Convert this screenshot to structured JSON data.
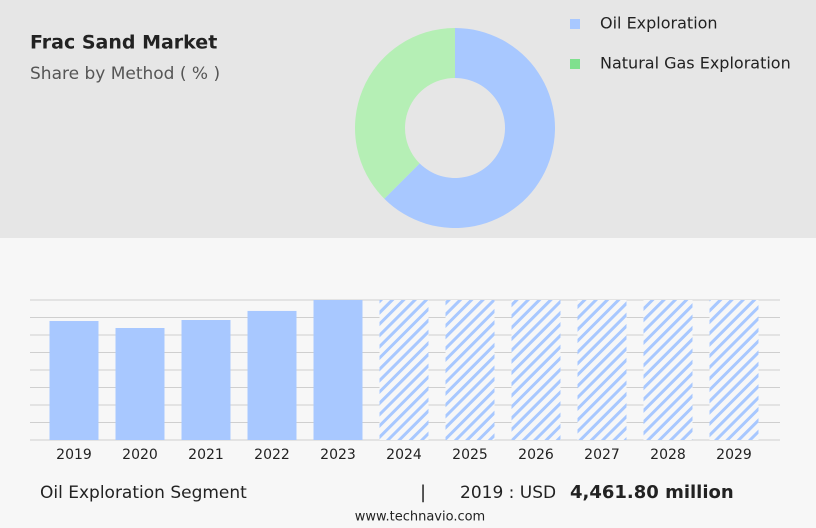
{
  "chart_data": [
    {
      "type": "pie",
      "title": "Frac Sand Market",
      "subtitle": "Share by Method ( % )",
      "categories": [
        "Oil Exploration",
        "Natural Gas Exploration"
      ],
      "values": [
        62.5,
        37.5
      ],
      "colors": [
        "#a8c8ff",
        "#b5efb5"
      ],
      "legend_colors": [
        "#a8c8ff",
        "#7fe08e"
      ],
      "donut": true,
      "legend": "top-right"
    },
    {
      "type": "bar",
      "categories": [
        "2019",
        "2020",
        "2021",
        "2022",
        "2023",
        "2024",
        "2025",
        "2026",
        "2027",
        "2028",
        "2029"
      ],
      "values": [
        4461.8,
        4200,
        4500,
        4840,
        5250,
        null,
        null,
        null,
        null,
        null,
        null
      ],
      "color": "#a8c8ff",
      "ylim": [
        0,
        5250
      ],
      "yticks": [
        0,
        656.25,
        1312.5,
        1968.75,
        2625,
        3281.25,
        3937.5,
        4593.75,
        5250
      ],
      "grid": true
    }
  ],
  "footer": {
    "segment": "Oil Exploration Segment",
    "separator": "|",
    "year": "2019 : USD",
    "value": "4,461.80 million",
    "source": "www.technavio.com"
  }
}
